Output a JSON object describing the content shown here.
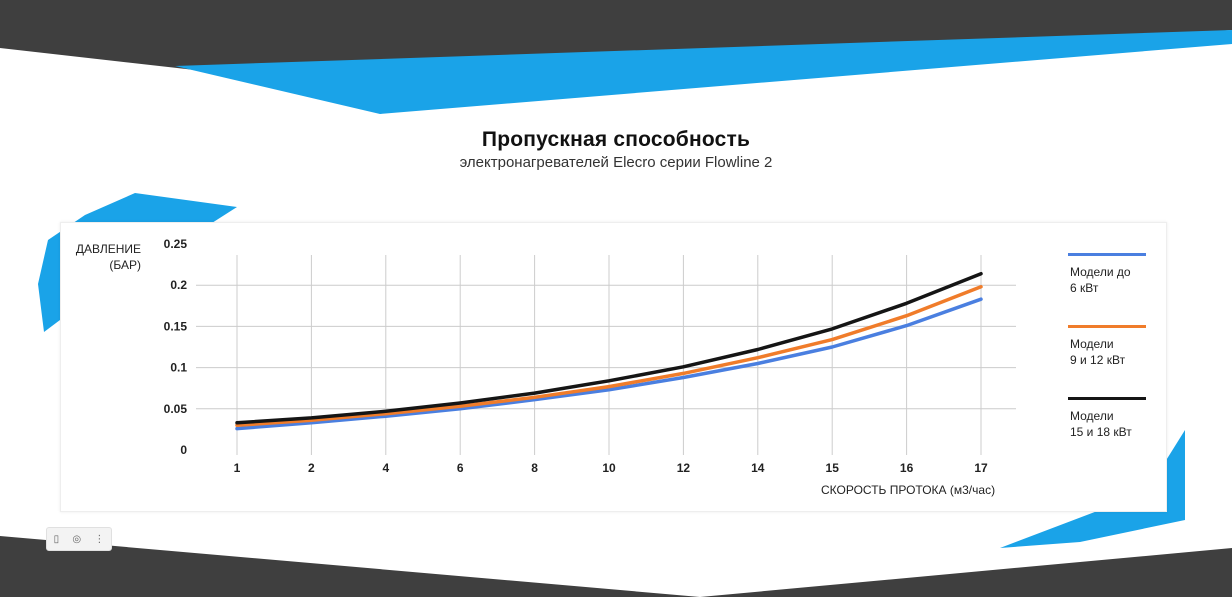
{
  "header": {
    "title": "Пропускная способность",
    "subtitle": "электронагревателей Elecro серии Flowline 2"
  },
  "colors": {
    "dark_band": "#3f3f3f",
    "accent_blue": "#1aa3e8",
    "grid": "#cccccc"
  },
  "toolbar": {
    "icons": [
      "copy-icon",
      "camera-icon",
      "more-icon"
    ],
    "glyphs": [
      "▯",
      "◎",
      "⋮"
    ]
  },
  "chart_data": {
    "type": "line",
    "title": "Пропускная способность",
    "ylabel_line1": "ДАВЛЕНИЕ",
    "ylabel_line2": "(БАР)",
    "xlabel": "СКОРОСТЬ ПРОТОКА (м3/час)",
    "categories": [
      "1",
      "2",
      "4",
      "6",
      "8",
      "10",
      "12",
      "14",
      "15",
      "16",
      "17"
    ],
    "y_ticks": [
      "0.25",
      "0.2",
      "0.15",
      "0.1",
      "0.05",
      "0"
    ],
    "ylim": [
      0,
      0.25
    ],
    "grid": true,
    "legend_position": "right",
    "series": [
      {
        "name_line1": "Модели до",
        "name_line2": "6 кВт",
        "color": "#4a7fe0",
        "values": [
          0.026,
          0.033,
          0.041,
          0.05,
          0.061,
          0.073,
          0.088,
          0.105,
          0.125,
          0.151,
          0.183
        ]
      },
      {
        "name_line1": "Модели",
        "name_line2": "9 и 12 кВт",
        "color": "#f07c2a",
        "values": [
          0.03,
          0.036,
          0.044,
          0.053,
          0.064,
          0.077,
          0.093,
          0.112,
          0.134,
          0.163,
          0.198
        ]
      },
      {
        "name_line1": "Модели",
        "name_line2": "15 и 18 кВт",
        "color": "#151515",
        "values": [
          0.033,
          0.039,
          0.047,
          0.057,
          0.069,
          0.084,
          0.101,
          0.122,
          0.147,
          0.178,
          0.214
        ]
      }
    ]
  }
}
